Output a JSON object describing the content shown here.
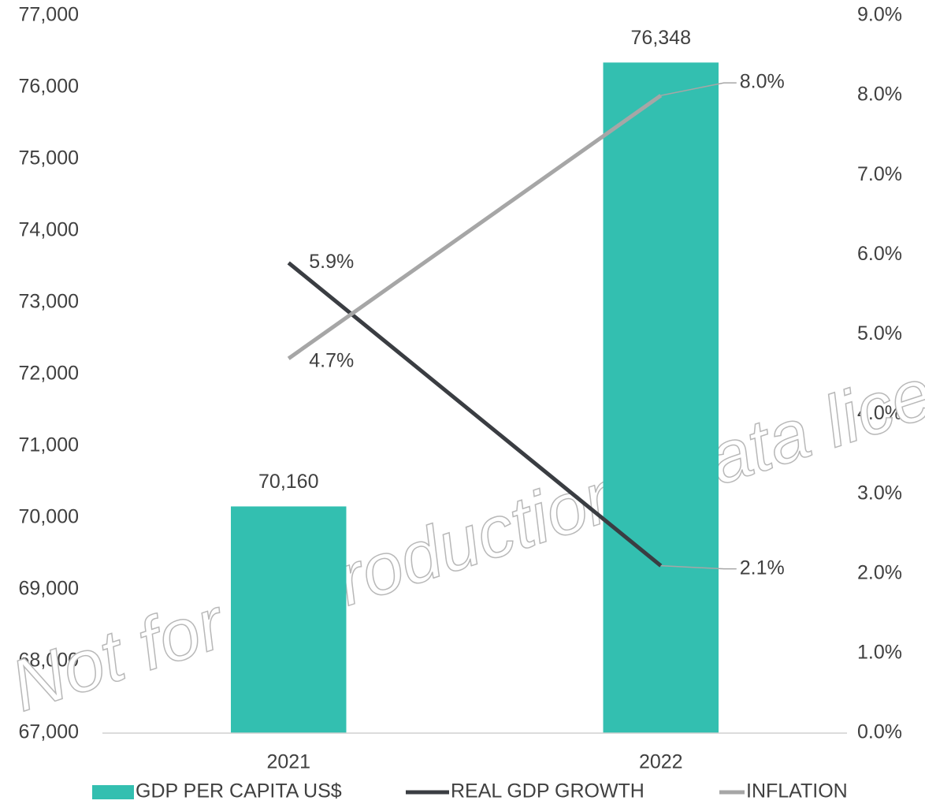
{
  "chart_data": {
    "type": "bar-line",
    "watermark": "Not for reproduction. Data license required",
    "categories": [
      "2021",
      "2022"
    ],
    "series": [
      {
        "name": "GDP PER CAPITA US$",
        "type": "bar",
        "color": "#33bfb0",
        "values": [
          70160,
          76348
        ],
        "value_labels": [
          "70,160",
          "76,348"
        ]
      },
      {
        "name": "REAL GDP GROWTH",
        "type": "line",
        "axis": "y2",
        "color": "#3a3d42",
        "values": [
          5.9,
          2.1
        ],
        "value_labels": [
          "5.9%",
          "2.1%"
        ]
      },
      {
        "name": "INFLATION",
        "type": "line",
        "axis": "y2",
        "color": "#a6a6a6",
        "values": [
          4.7,
          8.0
        ],
        "value_labels": [
          "4.7%",
          "8.0%"
        ]
      }
    ],
    "ylim": [
      67000,
      77000
    ],
    "yticks": [
      {
        "value": 67000,
        "label": "67,000"
      },
      {
        "value": 68000,
        "label": "68,000"
      },
      {
        "value": 69000,
        "label": "69,000"
      },
      {
        "value": 70000,
        "label": "70,000"
      },
      {
        "value": 71000,
        "label": "71,000"
      },
      {
        "value": 72000,
        "label": "72,000"
      },
      {
        "value": 73000,
        "label": "73,000"
      },
      {
        "value": 74000,
        "label": "74,000"
      },
      {
        "value": 75000,
        "label": "75,000"
      },
      {
        "value": 76000,
        "label": "76,000"
      },
      {
        "value": 77000,
        "label": "77,000"
      }
    ],
    "y2lim": [
      0,
      9
    ],
    "y2ticks": [
      {
        "value": 0,
        "label": "0.0%"
      },
      {
        "value": 1,
        "label": "1.0%"
      },
      {
        "value": 2,
        "label": "2.0%"
      },
      {
        "value": 3,
        "label": "3.0%"
      },
      {
        "value": 4,
        "label": "4.0%"
      },
      {
        "value": 5,
        "label": "5.0%"
      },
      {
        "value": 6,
        "label": "6.0%"
      },
      {
        "value": 7,
        "label": "7.0%"
      },
      {
        "value": 8,
        "label": "8.0%"
      },
      {
        "value": 9,
        "label": "9.0%"
      }
    ],
    "grid": false,
    "legend": "bottom"
  }
}
